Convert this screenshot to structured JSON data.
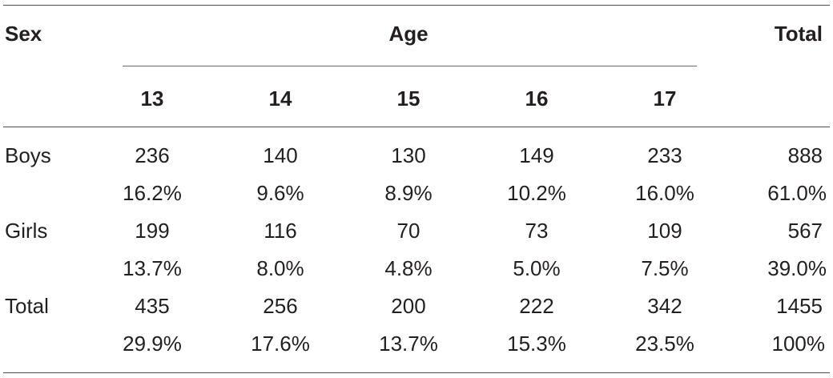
{
  "header": {
    "sex_label": "Sex",
    "age_label": "Age",
    "total_label": "Total",
    "ages": [
      "13",
      "14",
      "15",
      "16",
      "17"
    ]
  },
  "rows": [
    {
      "label": "Boys",
      "counts": [
        "236",
        "140",
        "130",
        "149",
        "233",
        "888"
      ],
      "percents": [
        "16.2%",
        "9.6%",
        "8.9%",
        "10.2%",
        "16.0%",
        "61.0%"
      ]
    },
    {
      "label": "Girls",
      "counts": [
        "199",
        "116",
        "70",
        "73",
        "109",
        "567"
      ],
      "percents": [
        "13.7%",
        "8.0%",
        "4.8%",
        "5.0%",
        "7.5%",
        "39.0%"
      ]
    },
    {
      "label": "Total",
      "counts": [
        "435",
        "256",
        "200",
        "222",
        "342",
        "1455"
      ],
      "percents": [
        "29.9%",
        "17.6%",
        "13.7%",
        "15.3%",
        "23.5%",
        "100%"
      ]
    }
  ]
}
